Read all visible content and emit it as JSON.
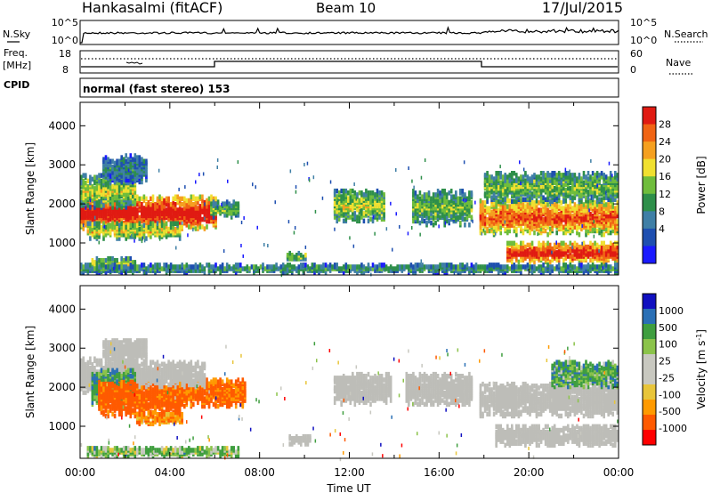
{
  "header": {
    "title": "Hankasalmi (fitACF)",
    "beam": "Beam 10",
    "date": "17/Jul/2015"
  },
  "noise_panel": {
    "left_label": "N.Sky",
    "right_label": "N.Search",
    "top_tick": "10^5",
    "bottom_tick": "10^0",
    "right_top_tick": "10^5",
    "right_bottom_tick": "10^0"
  },
  "freq_panel": {
    "left_label": "Freq.",
    "left_unit": "[MHz]",
    "left_ticks": [
      "18",
      "8"
    ],
    "right_label": "Nave",
    "right_ticks": [
      "60",
      "0"
    ],
    "cpid_label": "CPID"
  },
  "cpid_text": "normal (fast stereo) 153",
  "colors": {
    "power_scale": [
      "#1a1aff",
      "#1e4fb0",
      "#3f7fa6",
      "#2e8f4a",
      "#6fbd3c",
      "#f0e030",
      "#f5a020",
      "#f06414",
      "#e01a12"
    ],
    "velocity_scale": [
      "#ff0000",
      "#ff5a00",
      "#ff9a00",
      "#e8c53a",
      "#c8c8c0",
      "#c8c8c0",
      "#8bc34a",
      "#3f9e3f",
      "#2a6fb5",
      "#1010c0"
    ],
    "ground_scatter": "#bdbdb8"
  },
  "chart_data": [
    {
      "type": "heatmap",
      "title": "Power",
      "quantity": "Power",
      "unit": "[dB]",
      "xlabel": "",
      "ylabel": "Slant Range [km]",
      "xlim": [
        0,
        24
      ],
      "ylim": [
        180,
        4600
      ],
      "x_ticks": [
        "00:00",
        "04:00",
        "08:00",
        "12:00",
        "16:00",
        "20:00",
        "00:00"
      ],
      "y_ticks": [
        "1000",
        "2000",
        "3000",
        "4000"
      ],
      "colorbar_ticks": [
        "28",
        "24",
        "20",
        "16",
        "12",
        "8",
        "4"
      ],
      "colorbar_label": "Power [dB]",
      "regions": [
        {
          "t0": 0.0,
          "t1": 6.0,
          "r0": 1300,
          "r1": 2150,
          "level": 0.85
        },
        {
          "t0": 0.0,
          "t1": 2.5,
          "r0": 1850,
          "r1": 2700,
          "level": 0.45
        },
        {
          "t0": 1.0,
          "t1": 3.0,
          "r0": 2500,
          "r1": 3200,
          "level": 0.25
        },
        {
          "t0": 0.3,
          "t1": 4.5,
          "r0": 1050,
          "r1": 1450,
          "level": 0.5
        },
        {
          "t0": 0.5,
          "t1": 2.5,
          "r0": 200,
          "r1": 550,
          "level": 0.45
        },
        {
          "t0": 5.8,
          "t1": 7.0,
          "r0": 1600,
          "r1": 2000,
          "level": 0.4
        },
        {
          "t0": 9.2,
          "t1": 10.0,
          "r0": 480,
          "r1": 720,
          "level": 0.4
        },
        {
          "t0": 11.3,
          "t1": 13.5,
          "r0": 1500,
          "r1": 2300,
          "level": 0.45
        },
        {
          "t0": 14.8,
          "t1": 17.5,
          "r0": 1400,
          "r1": 2300,
          "level": 0.4
        },
        {
          "t0": 17.8,
          "t1": 24.0,
          "r0": 1150,
          "r1": 2050,
          "level": 0.7
        },
        {
          "t0": 18.0,
          "t1": 24.0,
          "r0": 2000,
          "r1": 2750,
          "level": 0.4
        },
        {
          "t0": 19.0,
          "t1": 24.0,
          "r0": 450,
          "r1": 950,
          "level": 0.8
        },
        {
          "t0": 0.0,
          "t1": 24.0,
          "r0": 180,
          "r1": 380,
          "level": 0.3
        }
      ]
    },
    {
      "type": "heatmap",
      "title": "Velocity",
      "quantity": "Velocity",
      "unit": "[m s^-1]",
      "xlabel": "Time UT",
      "ylabel": "Slant Range [km]",
      "xlim": [
        0,
        24
      ],
      "ylim": [
        180,
        4600
      ],
      "x_ticks": [
        "00:00",
        "04:00",
        "08:00",
        "12:00",
        "16:00",
        "20:00",
        "00:00"
      ],
      "y_ticks": [
        "1000",
        "2000",
        "3000",
        "4000"
      ],
      "colorbar_ticks": [
        "1000",
        "500",
        "100",
        "25",
        "-25",
        "-100",
        "-500",
        "-1000"
      ],
      "colorbar_label": "Velocity [m s^-1]",
      "regions": [
        {
          "t0": 0.0,
          "t1": 2.5,
          "r0": 1800,
          "r1": 2700,
          "vel": 0,
          "kind": "ground"
        },
        {
          "t0": 0.5,
          "t1": 2.5,
          "r0": 1500,
          "r1": 2400,
          "vel": 150,
          "kind": "iono"
        },
        {
          "t0": 0.8,
          "t1": 4.5,
          "r0": 1200,
          "r1": 2100,
          "vel": -300,
          "kind": "iono"
        },
        {
          "t0": 4.0,
          "t1": 7.3,
          "r0": 1450,
          "r1": 2150,
          "vel": -250,
          "kind": "iono"
        },
        {
          "t0": 2.5,
          "t1": 5.5,
          "r0": 1950,
          "r1": 2600,
          "vel": 0,
          "kind": "ground"
        },
        {
          "t0": 1.0,
          "t1": 3.0,
          "r0": 2600,
          "r1": 3150,
          "vel": 0,
          "kind": "ground"
        },
        {
          "t0": 2.5,
          "t1": 4.5,
          "r0": 1000,
          "r1": 1300,
          "vel": -150,
          "kind": "iono"
        },
        {
          "t0": 0.3,
          "t1": 7.0,
          "r0": 180,
          "r1": 420,
          "vel": 80,
          "kind": "iono"
        },
        {
          "t0": 9.3,
          "t1": 10.2,
          "r0": 480,
          "r1": 700,
          "vel": 0,
          "kind": "ground"
        },
        {
          "t0": 11.3,
          "t1": 13.8,
          "r0": 1500,
          "r1": 2300,
          "vel": 0,
          "kind": "ground"
        },
        {
          "t0": 14.5,
          "t1": 17.5,
          "r0": 1500,
          "r1": 2300,
          "vel": 0,
          "kind": "ground"
        },
        {
          "t0": 17.8,
          "t1": 24.0,
          "r0": 1200,
          "r1": 2050,
          "vel": 0,
          "kind": "ground"
        },
        {
          "t0": 18.5,
          "t1": 24.0,
          "r0": 450,
          "r1": 950,
          "vel": 0,
          "kind": "ground"
        },
        {
          "t0": 21.0,
          "t1": 24.0,
          "r0": 1950,
          "r1": 2600,
          "vel": 120,
          "kind": "iono"
        }
      ]
    }
  ]
}
